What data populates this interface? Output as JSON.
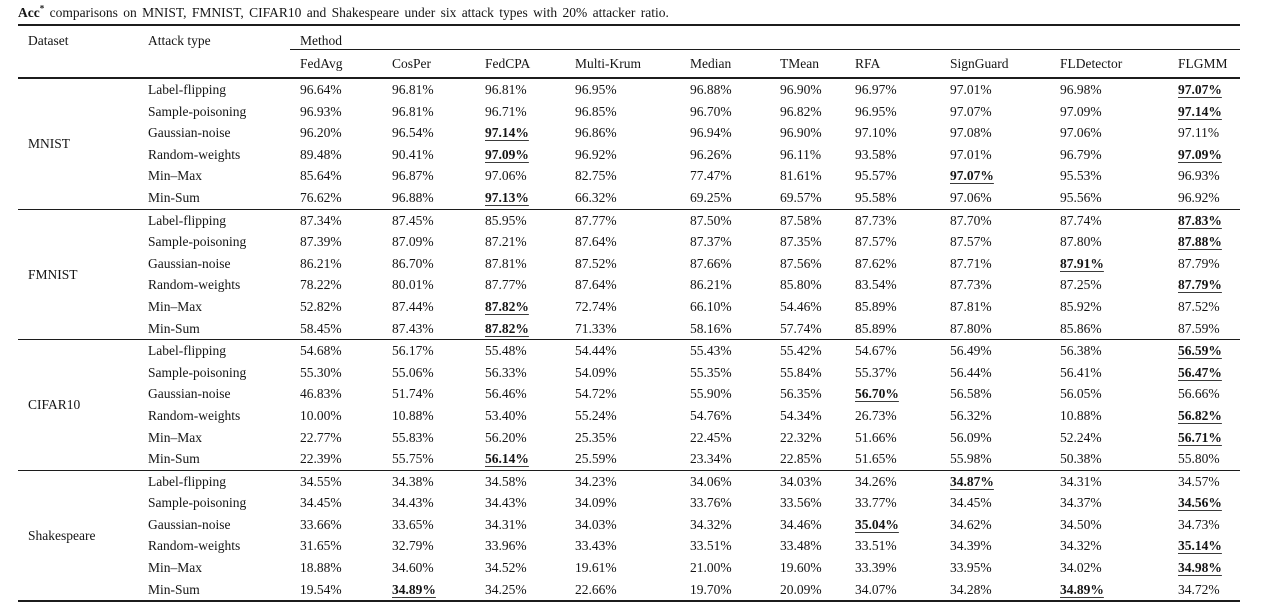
{
  "caption": {
    "metric": "Acc",
    "superscript": "*",
    "rest": " comparisons on MNIST, FMNIST, CIFAR10 and Shakespeare under six attack types with 20% attacker ratio."
  },
  "table": {
    "dataset_header": "Dataset",
    "attack_type_header": "Attack type",
    "method_header": "Method",
    "methods": [
      "FedAvg",
      "CosPer",
      "FedCPA",
      "Multi-Krum",
      "Median",
      "TMean",
      "RFA",
      "SignGuard",
      "FLDetector",
      "FLGMM"
    ],
    "attack_types": [
      "Label-flipping",
      "Sample-poisoning",
      "Gaussian-noise",
      "Random-weights",
      "Min–Max",
      "Min-Sum"
    ],
    "sections": [
      {
        "dataset": "MNIST",
        "rows": [
          {
            "attack": "Label-flipping",
            "values": [
              "96.64%",
              "96.81%",
              "96.81%",
              "96.95%",
              "96.88%",
              "96.90%",
              "96.97%",
              "97.01%",
              "96.98%",
              "97.07%"
            ],
            "highlight": [
              9
            ]
          },
          {
            "attack": "Sample-poisoning",
            "values": [
              "96.93%",
              "96.81%",
              "96.71%",
              "96.85%",
              "96.70%",
              "96.82%",
              "96.95%",
              "97.07%",
              "97.09%",
              "97.14%"
            ],
            "highlight": [
              9
            ]
          },
          {
            "attack": "Gaussian-noise",
            "values": [
              "96.20%",
              "96.54%",
              "97.14%",
              "96.86%",
              "96.94%",
              "96.90%",
              "97.10%",
              "97.08%",
              "97.06%",
              "97.11%"
            ],
            "highlight": [
              2
            ]
          },
          {
            "attack": "Random-weights",
            "values": [
              "89.48%",
              "90.41%",
              "97.09%",
              "96.92%",
              "96.26%",
              "96.11%",
              "93.58%",
              "97.01%",
              "96.79%",
              "97.09%"
            ],
            "highlight": [
              2,
              9
            ]
          },
          {
            "attack": "Min–Max",
            "values": [
              "85.64%",
              "96.87%",
              "97.06%",
              "82.75%",
              "77.47%",
              "81.61%",
              "95.57%",
              "97.07%",
              "95.53%",
              "96.93%"
            ],
            "highlight": [
              7
            ]
          },
          {
            "attack": "Min-Sum",
            "values": [
              "76.62%",
              "96.88%",
              "97.13%",
              "66.32%",
              "69.25%",
              "69.57%",
              "95.58%",
              "97.06%",
              "95.56%",
              "96.92%"
            ],
            "highlight": [
              2
            ]
          }
        ]
      },
      {
        "dataset": "FMNIST",
        "rows": [
          {
            "attack": "Label-flipping",
            "values": [
              "87.34%",
              "87.45%",
              "85.95%",
              "87.77%",
              "87.50%",
              "87.58%",
              "87.73%",
              "87.70%",
              "87.74%",
              "87.83%"
            ],
            "highlight": [
              9
            ]
          },
          {
            "attack": "Sample-poisoning",
            "values": [
              "87.39%",
              "87.09%",
              "87.21%",
              "87.64%",
              "87.37%",
              "87.35%",
              "87.57%",
              "87.57%",
              "87.80%",
              "87.88%"
            ],
            "highlight": [
              9
            ]
          },
          {
            "attack": "Gaussian-noise",
            "values": [
              "86.21%",
              "86.70%",
              "87.81%",
              "87.52%",
              "87.66%",
              "87.56%",
              "87.62%",
              "87.71%",
              "87.91%",
              "87.79%"
            ],
            "highlight": [
              8
            ]
          },
          {
            "attack": "Random-weights",
            "values": [
              "78.22%",
              "80.01%",
              "87.77%",
              "87.64%",
              "86.21%",
              "85.80%",
              "83.54%",
              "87.73%",
              "87.25%",
              "87.79%"
            ],
            "highlight": [
              9
            ]
          },
          {
            "attack": "Min–Max",
            "values": [
              "52.82%",
              "87.44%",
              "87.82%",
              "72.74%",
              "66.10%",
              "54.46%",
              "85.89%",
              "87.81%",
              "85.92%",
              "87.52%"
            ],
            "highlight": [
              2
            ]
          },
          {
            "attack": "Min-Sum",
            "values": [
              "58.45%",
              "87.43%",
              "87.82%",
              "71.33%",
              "58.16%",
              "57.74%",
              "85.89%",
              "87.80%",
              "85.86%",
              "87.59%"
            ],
            "highlight": [
              2
            ]
          }
        ]
      },
      {
        "dataset": "CIFAR10",
        "rows": [
          {
            "attack": "Label-flipping",
            "values": [
              "54.68%",
              "56.17%",
              "55.48%",
              "54.44%",
              "55.43%",
              "55.42%",
              "54.67%",
              "56.49%",
              "56.38%",
              "56.59%"
            ],
            "highlight": [
              9
            ]
          },
          {
            "attack": "Sample-poisoning",
            "values": [
              "55.30%",
              "55.06%",
              "56.33%",
              "54.09%",
              "55.35%",
              "55.84%",
              "55.37%",
              "56.44%",
              "56.41%",
              "56.47%"
            ],
            "highlight": [
              9
            ]
          },
          {
            "attack": "Gaussian-noise",
            "values": [
              "46.83%",
              "51.74%",
              "56.46%",
              "54.72%",
              "55.90%",
              "56.35%",
              "56.70%",
              "56.58%",
              "56.05%",
              "56.66%"
            ],
            "highlight": [
              6
            ]
          },
          {
            "attack": "Random-weights",
            "values": [
              "10.00%",
              "10.88%",
              "53.40%",
              "55.24%",
              "54.76%",
              "54.34%",
              "26.73%",
              "56.32%",
              "10.88%",
              "56.82%"
            ],
            "highlight": [
              9
            ]
          },
          {
            "attack": "Min–Max",
            "values": [
              "22.77%",
              "55.83%",
              "56.20%",
              "25.35%",
              "22.45%",
              "22.32%",
              "51.66%",
              "56.09%",
              "52.24%",
              "56.71%"
            ],
            "highlight": [
              9
            ]
          },
          {
            "attack": "Min-Sum",
            "values": [
              "22.39%",
              "55.75%",
              "56.14%",
              "25.59%",
              "23.34%",
              "22.85%",
              "51.65%",
              "55.98%",
              "50.38%",
              "55.80%"
            ],
            "highlight": [
              2
            ]
          }
        ]
      },
      {
        "dataset": "Shakespeare",
        "rows": [
          {
            "attack": "Label-flipping",
            "values": [
              "34.55%",
              "34.38%",
              "34.58%",
              "34.23%",
              "34.06%",
              "34.03%",
              "34.26%",
              "34.87%",
              "34.31%",
              "34.57%"
            ],
            "highlight": [
              7
            ]
          },
          {
            "attack": "Sample-poisoning",
            "values": [
              "34.45%",
              "34.43%",
              "34.43%",
              "34.09%",
              "33.76%",
              "33.56%",
              "33.77%",
              "34.45%",
              "34.37%",
              "34.56%"
            ],
            "highlight": [
              9
            ]
          },
          {
            "attack": "Gaussian-noise",
            "values": [
              "33.66%",
              "33.65%",
              "34.31%",
              "34.03%",
              "34.32%",
              "34.46%",
              "35.04%",
              "34.62%",
              "34.50%",
              "34.73%"
            ],
            "highlight": [
              6
            ]
          },
          {
            "attack": "Random-weights",
            "values": [
              "31.65%",
              "32.79%",
              "33.96%",
              "33.43%",
              "33.51%",
              "33.48%",
              "33.51%",
              "34.39%",
              "34.32%",
              "35.14%"
            ],
            "highlight": [
              9
            ]
          },
          {
            "attack": "Min–Max",
            "values": [
              "18.88%",
              "34.60%",
              "34.52%",
              "19.61%",
              "21.00%",
              "19.60%",
              "33.39%",
              "33.95%",
              "34.02%",
              "34.98%"
            ],
            "highlight": [
              9
            ]
          },
          {
            "attack": "Min-Sum",
            "values": [
              "19.54%",
              "34.89%",
              "34.25%",
              "22.66%",
              "19.70%",
              "20.09%",
              "34.07%",
              "34.28%",
              "34.89%",
              "34.72%"
            ],
            "highlight": [
              1,
              8
            ]
          }
        ]
      }
    ]
  }
}
